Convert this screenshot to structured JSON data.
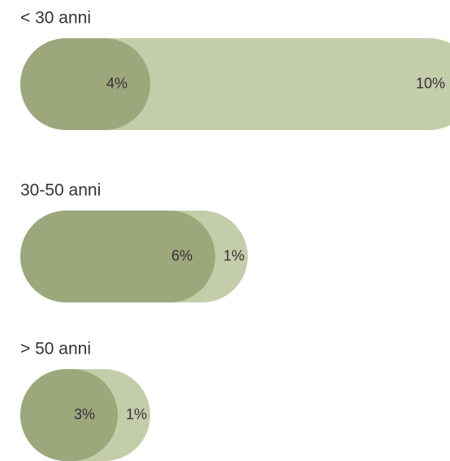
{
  "chart_data": {
    "type": "bar",
    "stacked": true,
    "categories": [
      "< 30 anni",
      "30-50 anni",
      "> 50 anni"
    ],
    "series": [
      {
        "color": "#9ca77c",
        "values": [
          4,
          6,
          3
        ],
        "value_labels": [
          "4%",
          "6%",
          "3%"
        ]
      },
      {
        "color": "#c4cdaa",
        "values": [
          10,
          1,
          1
        ],
        "value_labels": [
          "10%",
          "1%",
          "1%"
        ]
      }
    ]
  }
}
